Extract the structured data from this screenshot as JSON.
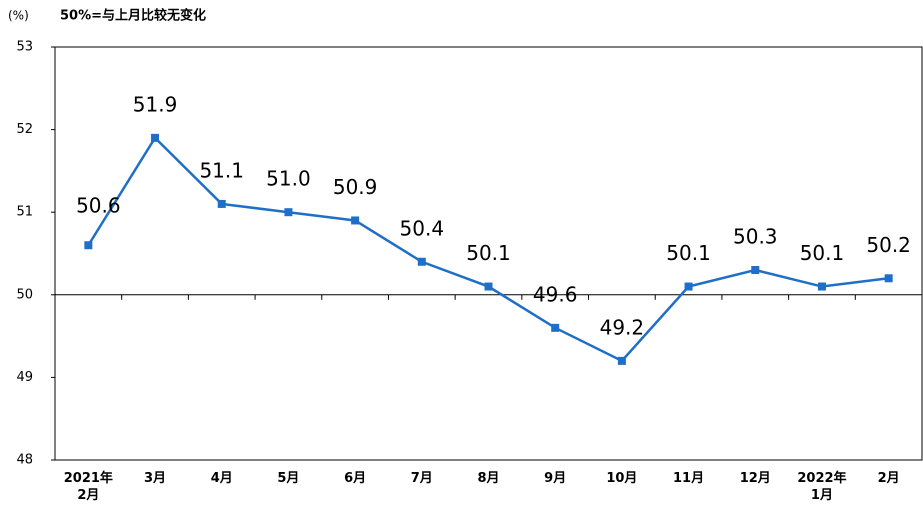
{
  "chart_data": {
    "type": "line",
    "unit_label": "(%)",
    "note": "50%=与上月比较无变化",
    "categories": [
      "2021年\n2月",
      "3月",
      "4月",
      "5月",
      "6月",
      "7月",
      "8月",
      "9月",
      "10月",
      "11月",
      "12月",
      "2022年\n1月",
      "2月"
    ],
    "values": [
      50.6,
      51.9,
      51.1,
      51.0,
      50.9,
      50.4,
      50.1,
      49.6,
      49.2,
      50.1,
      50.3,
      50.1,
      50.2
    ],
    "value_labels": [
      "50.6",
      "51.9",
      "51.1",
      "51.0",
      "50.9",
      "50.4",
      "50.1",
      "49.6",
      "49.2",
      "50.1",
      "50.3",
      "50.1",
      "50.2"
    ],
    "color": "#1f6fc8",
    "ylim": [
      48,
      53
    ],
    "yticks": [
      48,
      49,
      50,
      51,
      52,
      53
    ],
    "baseline": 50
  }
}
